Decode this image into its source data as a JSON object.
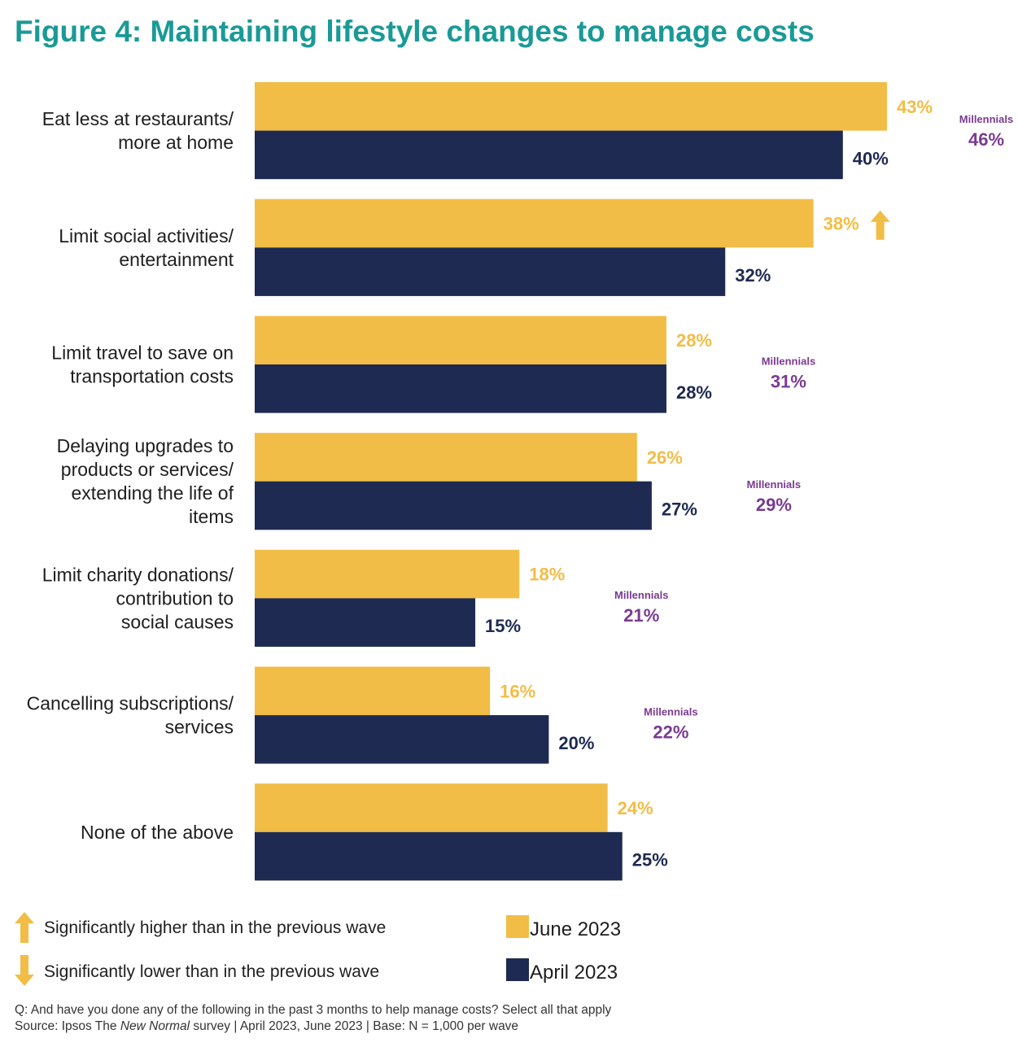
{
  "title": "Figure 4: Maintaining lifestyle changes to manage costs",
  "colors": {
    "june": "#f2bd46",
    "april": "#1e2a52",
    "millennials": "#7a3a92",
    "title": "#1a9a96"
  },
  "chart_data": {
    "type": "bar",
    "orientation": "horizontal",
    "title": "Figure 4: Maintaining lifestyle changes to manage costs",
    "categories": [
      [
        "Eat less at restaurants/",
        "more at home"
      ],
      [
        "Limit social activities/",
        "entertainment"
      ],
      [
        "Limit travel to save on",
        "transportation costs"
      ],
      [
        "Delaying upgrades to",
        "products or services/",
        "extending the life of",
        "items"
      ],
      [
        "Limit charity donations/",
        "contribution to",
        "social causes"
      ],
      [
        "Cancelling subscriptions/",
        "services"
      ],
      [
        "None of the above"
      ]
    ],
    "series": [
      {
        "name": "June 2023",
        "values": [
          43,
          38,
          28,
          26,
          18,
          16,
          24
        ],
        "labels": [
          "43%",
          "38%",
          "28%",
          "26%",
          "18%",
          "16%",
          "24%"
        ]
      },
      {
        "name": "April 2023",
        "values": [
          40,
          32,
          28,
          27,
          15,
          20,
          25
        ],
        "labels": [
          "40%",
          "32%",
          "28%",
          "27%",
          "15%",
          "20%",
          "25%"
        ]
      }
    ],
    "significance": [
      {
        "category_index": 1,
        "series": "June 2023",
        "direction": "higher"
      }
    ],
    "millennials_heading": "Millennials",
    "millennials": [
      {
        "category_index": 0,
        "label": "46%"
      },
      {
        "category_index": 2,
        "label": "31%"
      },
      {
        "category_index": 3,
        "label": "29%"
      },
      {
        "category_index": 4,
        "label": "21%"
      },
      {
        "category_index": 5,
        "label": "22%"
      }
    ],
    "xlim": [
      0,
      45
    ],
    "legend": [
      "June 2023",
      "April 2023"
    ]
  },
  "legend": {
    "higher_note": "Significantly higher than in the previous wave",
    "lower_note": "Significantly lower than in the previous wave",
    "june_label": "June 2023",
    "april_label": "April 2023"
  },
  "footnote": {
    "question": "Q: And have you done any of the following in the past 3 months to help manage costs? Select all that apply",
    "source_prefix": "Source: Ipsos The ",
    "source_italic": "New Normal",
    "source_suffix": " survey | April 2023, June 2023 | Base: N = 1,000 per wave"
  }
}
